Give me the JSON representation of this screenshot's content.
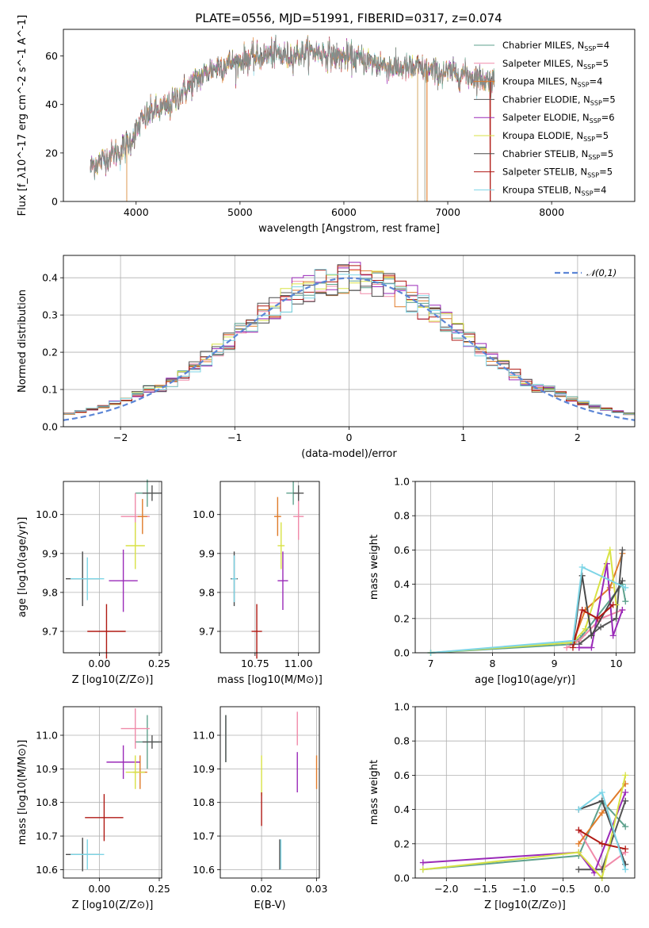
{
  "figure": {
    "title": "PLATE=0556, MJD=51991, FIBERID=0317, z=0.074"
  },
  "colors": {
    "chabrier_miles": "#5fa28e",
    "salpeter_miles": "#f08aa9",
    "kroupa_miles": "#e07b2a",
    "chabrier_elodie": "#555555",
    "salpeter_elodie": "#9a2ab8",
    "kroupa_elodie": "#d8e245",
    "chabrier_stelib": "#4a4a4a",
    "salpeter_stelib": "#b01a14",
    "kroupa_stelib": "#7dd5e6",
    "normal_curve": "#5c86d6"
  },
  "chart_data": [
    {
      "id": "spectrum",
      "type": "line",
      "xlabel": "wavelength [Angstrom, rest frame]",
      "ylabel": "Flux [f_λ10^-17 erg cm^-2 s^-1 A^-1]",
      "xlim": [
        3300,
        8800
      ],
      "ylim": [
        0,
        71
      ],
      "xticks": [
        4000,
        5000,
        6000,
        7000,
        8000
      ],
      "yticks": [
        0,
        20,
        40,
        60
      ],
      "grid": false,
      "legend_position": "top-right",
      "legend": [
        {
          "name": "Chabrier MILES",
          "nssp": "4"
        },
        {
          "name": "Salpeter MILES",
          "nssp": "5"
        },
        {
          "name": "Kroupa MILES",
          "nssp": "4"
        },
        {
          "name": "Chabrier ELODIE",
          "nssp": "5"
        },
        {
          "name": "Salpeter ELODIE",
          "nssp": "6"
        },
        {
          "name": "Kroupa ELODIE",
          "nssp": "5"
        },
        {
          "name": "Chabrier STELIB",
          "nssp": "5"
        },
        {
          "name": "Salpeter STELIB",
          "nssp": "5"
        },
        {
          "name": "Kroupa STELIB",
          "nssp": "4"
        }
      ],
      "continuum_x": [
        3560,
        3700,
        3850,
        3950,
        4050,
        4150,
        4300,
        4500,
        4700,
        4900,
        5100,
        5300,
        5500,
        5700,
        5900,
        6100,
        6300,
        6500,
        6700,
        6900,
        7100,
        7300,
        7500
      ],
      "continuum_y": [
        14,
        18,
        21,
        25,
        33,
        37,
        39,
        47,
        54,
        57,
        59,
        61,
        60,
        62,
        60,
        59,
        57,
        55,
        55,
        53,
        53,
        51,
        49
      ]
    },
    {
      "id": "residuals",
      "type": "histogram",
      "xlabel": "(data-model)/error",
      "ylabel": "Normed distribution",
      "xlim": [
        -2.5,
        2.5
      ],
      "ylim": [
        0,
        0.46
      ],
      "xticks": [
        -2,
        -1,
        0,
        1,
        2
      ],
      "yticks": [
        0.0,
        0.1,
        0.2,
        0.3,
        0.4
      ],
      "grid": true,
      "legend_position": "top-right",
      "reference_label": "𝒩(0,1)"
    },
    {
      "id": "age_vs_Z",
      "type": "errorbar",
      "xlabel": "Z [log10(Z/Z⊙)]",
      "ylabel": "age [log10(age/yr)]",
      "xlim": [
        -0.15,
        0.26
      ],
      "ylim": [
        9.645,
        10.085
      ],
      "xticks": [
        0.0,
        0.25
      ],
      "yticks": [
        9.7,
        9.8,
        9.9,
        10.0
      ],
      "points": [
        {
          "x": 0.2,
          "y": 10.055,
          "xerr": 0.05,
          "yerr": 0.035,
          "c": "chabrier_miles"
        },
        {
          "x": 0.15,
          "y": 9.995,
          "xerr": 0.06,
          "yerr": 0.06,
          "c": "salpeter_miles"
        },
        {
          "x": 0.18,
          "y": 9.995,
          "xerr": 0.02,
          "yerr": 0.045,
          "c": "kroupa_miles"
        },
        {
          "x": 0.22,
          "y": 10.055,
          "xerr": 0.04,
          "yerr": 0.02,
          "c": "chabrier_elodie"
        },
        {
          "x": 0.1,
          "y": 9.83,
          "xerr": 0.06,
          "yerr": 0.08,
          "c": "salpeter_elodie"
        },
        {
          "x": 0.15,
          "y": 9.92,
          "xerr": 0.04,
          "yerr": 0.06,
          "c": "kroupa_elodie"
        },
        {
          "x": -0.07,
          "y": 9.835,
          "xerr": 0.07,
          "yerr": 0.07,
          "c": "chabrier_stelib"
        },
        {
          "x": 0.03,
          "y": 9.7,
          "xerr": 0.08,
          "yerr": 0.07,
          "c": "salpeter_stelib"
        },
        {
          "x": -0.05,
          "y": 9.835,
          "xerr": 0.07,
          "yerr": 0.055,
          "c": "kroupa_stelib"
        }
      ]
    },
    {
      "id": "age_vs_mass",
      "type": "errorbar",
      "xlabel": "mass [log10(M/M⊙)]",
      "ylabel": "",
      "xlim": [
        10.55,
        11.12
      ],
      "ylim": [
        9.645,
        10.085
      ],
      "xticks": [
        10.75,
        11.0
      ],
      "yticks": [
        9.7,
        9.8,
        9.9,
        10.0
      ],
      "points": [
        {
          "x": 10.97,
          "y": 10.055,
          "xerr": 0.04,
          "yerr": 0.03,
          "c": "chabrier_miles"
        },
        {
          "x": 11.0,
          "y": 9.995,
          "xerr": 0.03,
          "yerr": 0.06,
          "c": "salpeter_miles"
        },
        {
          "x": 10.88,
          "y": 9.995,
          "xerr": 0.02,
          "yerr": 0.05,
          "c": "kroupa_miles"
        },
        {
          "x": 11.0,
          "y": 10.055,
          "xerr": 0.03,
          "yerr": 0.02,
          "c": "chabrier_elodie"
        },
        {
          "x": 10.91,
          "y": 9.83,
          "xerr": 0.03,
          "yerr": 0.075,
          "c": "salpeter_elodie"
        },
        {
          "x": 10.9,
          "y": 9.92,
          "xerr": 0.02,
          "yerr": 0.06,
          "c": "kroupa_elodie"
        },
        {
          "x": 10.63,
          "y": 9.835,
          "xerr": 0.02,
          "yerr": 0.07,
          "c": "chabrier_stelib"
        },
        {
          "x": 10.76,
          "y": 9.7,
          "xerr": 0.03,
          "yerr": 0.07,
          "c": "salpeter_stelib"
        },
        {
          "x": 10.63,
          "y": 9.835,
          "xerr": 0.015,
          "yerr": 0.06,
          "c": "kroupa_stelib"
        }
      ]
    },
    {
      "id": "mass_weight_vs_age",
      "type": "line",
      "xlabel": "age [log10(age/yr)]",
      "ylabel": "mass weight",
      "xlim": [
        6.75,
        10.3
      ],
      "ylim": [
        0,
        1.0
      ],
      "xticks": [
        7,
        8,
        9,
        10
      ],
      "yticks": [
        0.0,
        0.2,
        0.4,
        0.6,
        0.8,
        1.0
      ],
      "grid": true,
      "series": [
        {
          "c": "chabrier_miles",
          "x": [
            7.0,
            9.3,
            9.45,
            10.1,
            10.15
          ],
          "y": [
            0.0,
            0.05,
            0.1,
            0.4,
            0.3
          ]
        },
        {
          "c": "salpeter_miles",
          "x": [
            9.2,
            9.4,
            9.75,
            10.1
          ],
          "y": [
            0.03,
            0.07,
            0.2,
            0.25
          ]
        },
        {
          "c": "kroupa_miles",
          "x": [
            9.3,
            9.5,
            9.9,
            10.1
          ],
          "y": [
            0.06,
            0.25,
            0.38,
            0.58
          ]
        },
        {
          "c": "chabrier_elodie",
          "x": [
            9.4,
            9.75,
            10.0,
            10.1
          ],
          "y": [
            0.05,
            0.15,
            0.2,
            0.6
          ]
        },
        {
          "c": "salpeter_elodie",
          "x": [
            9.4,
            9.6,
            9.85,
            9.95,
            10.1
          ],
          "y": [
            0.03,
            0.03,
            0.52,
            0.1,
            0.25
          ]
        },
        {
          "c": "kroupa_elodie",
          "x": [
            7.0,
            9.3,
            9.5,
            9.9,
            10.0
          ],
          "y": [
            0.0,
            0.06,
            0.14,
            0.6,
            0.28
          ]
        },
        {
          "c": "chabrier_stelib",
          "x": [
            9.3,
            9.45,
            9.6,
            10.1
          ],
          "y": [
            0.05,
            0.45,
            0.1,
            0.42
          ]
        },
        {
          "c": "salpeter_stelib",
          "x": [
            9.3,
            9.45,
            9.7,
            9.95
          ],
          "y": [
            0.03,
            0.25,
            0.2,
            0.28
          ]
        },
        {
          "c": "kroupa_stelib",
          "x": [
            7.0,
            9.3,
            9.45,
            10.15
          ],
          "y": [
            0.0,
            0.07,
            0.5,
            0.38
          ]
        }
      ]
    },
    {
      "id": "mass_vs_Z",
      "type": "errorbar",
      "xlabel": "Z [log10(Z/Z⊙)]",
      "ylabel": "mass [log10(M/M⊙)]",
      "xlim": [
        -0.15,
        0.26
      ],
      "ylim": [
        10.575,
        11.085
      ],
      "xticks": [
        0.0,
        0.25
      ],
      "yticks": [
        10.6,
        10.7,
        10.8,
        10.9,
        11.0
      ],
      "points": [
        {
          "x": 0.2,
          "y": 10.98,
          "xerr": 0.05,
          "yerr": 0.08,
          "c": "chabrier_miles"
        },
        {
          "x": 0.15,
          "y": 11.02,
          "xerr": 0.06,
          "yerr": 0.06,
          "c": "salpeter_miles"
        },
        {
          "x": 0.17,
          "y": 10.89,
          "xerr": 0.03,
          "yerr": 0.05,
          "c": "kroupa_miles"
        },
        {
          "x": 0.22,
          "y": 10.98,
          "xerr": 0.04,
          "yerr": 0.02,
          "c": "chabrier_elodie"
        },
        {
          "x": 0.1,
          "y": 10.92,
          "xerr": 0.07,
          "yerr": 0.05,
          "c": "salpeter_elodie"
        },
        {
          "x": 0.15,
          "y": 10.89,
          "xerr": 0.04,
          "yerr": 0.05,
          "c": "kroupa_elodie"
        },
        {
          "x": -0.07,
          "y": 10.645,
          "xerr": 0.07,
          "yerr": 0.05,
          "c": "chabrier_stelib"
        },
        {
          "x": 0.02,
          "y": 10.755,
          "xerr": 0.08,
          "yerr": 0.07,
          "c": "salpeter_stelib"
        },
        {
          "x": -0.05,
          "y": 10.645,
          "xerr": 0.07,
          "yerr": 0.045,
          "c": "kroupa_stelib"
        }
      ]
    },
    {
      "id": "mass_vs_ebv",
      "type": "errorbar",
      "xlabel": "E(B-V)",
      "ylabel": "",
      "xlim": [
        0.0125,
        0.0305
      ],
      "ylim": [
        10.575,
        11.085
      ],
      "xticks": [
        0.01,
        0.02,
        0.03
      ],
      "yticks": [
        10.6,
        10.7,
        10.8,
        10.9,
        11.0
      ],
      "points": [
        {
          "x": 0.0135,
          "y": 10.99,
          "xerr": 0,
          "yerr": 0.07,
          "c": "chabrier_miles"
        },
        {
          "x": 0.0265,
          "y": 11.02,
          "xerr": 0,
          "yerr": 0.05,
          "c": "salpeter_miles"
        },
        {
          "x": 0.03,
          "y": 10.89,
          "xerr": 0,
          "yerr": 0.05,
          "c": "kroupa_miles"
        },
        {
          "x": 0.0135,
          "y": 10.99,
          "xerr": 0,
          "yerr": 0.07,
          "c": "chabrier_elodie"
        },
        {
          "x": 0.0265,
          "y": 10.89,
          "xerr": 0,
          "yerr": 0.06,
          "c": "salpeter_elodie"
        },
        {
          "x": 0.02,
          "y": 10.88,
          "xerr": 0,
          "yerr": 0.06,
          "c": "kroupa_elodie"
        },
        {
          "x": 0.0233,
          "y": 10.645,
          "xerr": 0,
          "yerr": 0.045,
          "c": "chabrier_stelib"
        },
        {
          "x": 0.02,
          "y": 10.78,
          "xerr": 0,
          "yerr": 0.05,
          "c": "salpeter_stelib"
        },
        {
          "x": 0.0235,
          "y": 10.645,
          "xerr": 0,
          "yerr": 0.045,
          "c": "kroupa_stelib"
        }
      ]
    },
    {
      "id": "mass_weight_vs_Z",
      "type": "line",
      "xlabel": "Z [log10(Z/Z⊙)]",
      "ylabel": "mass weight",
      "xlim": [
        -2.4,
        0.42
      ],
      "ylim": [
        0,
        1.0
      ],
      "xticks": [
        -2.0,
        -1.5,
        -1.0,
        -0.5,
        0.0
      ],
      "yticks": [
        0.0,
        0.2,
        0.4,
        0.6,
        0.8,
        1.0
      ],
      "grid": true,
      "series": [
        {
          "c": "chabrier_miles",
          "x": [
            -2.3,
            -0.3,
            0.0,
            0.3
          ],
          "y": [
            0.05,
            0.13,
            0.45,
            0.3
          ]
        },
        {
          "c": "salpeter_miles",
          "x": [
            -0.3,
            0.0,
            0.3
          ],
          "y": [
            0.28,
            0.05,
            0.15
          ]
        },
        {
          "c": "kroupa_miles",
          "x": [
            -0.3,
            0.0,
            0.3
          ],
          "y": [
            0.2,
            0.38,
            0.55
          ]
        },
        {
          "c": "chabrier_elodie",
          "x": [
            -0.3,
            0.0,
            0.3
          ],
          "y": [
            0.05,
            0.05,
            0.45
          ]
        },
        {
          "c": "salpeter_elodie",
          "x": [
            -2.3,
            -0.3,
            -0.1,
            0.3
          ],
          "y": [
            0.09,
            0.15,
            0.03,
            0.5
          ]
        },
        {
          "c": "kroupa_elodie",
          "x": [
            -2.3,
            -0.3,
            0.0,
            0.3
          ],
          "y": [
            0.05,
            0.15,
            0.0,
            0.6
          ]
        },
        {
          "c": "chabrier_stelib",
          "x": [
            -0.3,
            0.0,
            0.3
          ],
          "y": [
            0.4,
            0.45,
            0.08
          ]
        },
        {
          "c": "salpeter_stelib",
          "x": [
            -0.3,
            0.0,
            0.3
          ],
          "y": [
            0.28,
            0.2,
            0.17
          ]
        },
        {
          "c": "kroupa_stelib",
          "x": [
            -0.3,
            0.0,
            0.3
          ],
          "y": [
            0.4,
            0.5,
            0.05
          ]
        }
      ]
    }
  ]
}
